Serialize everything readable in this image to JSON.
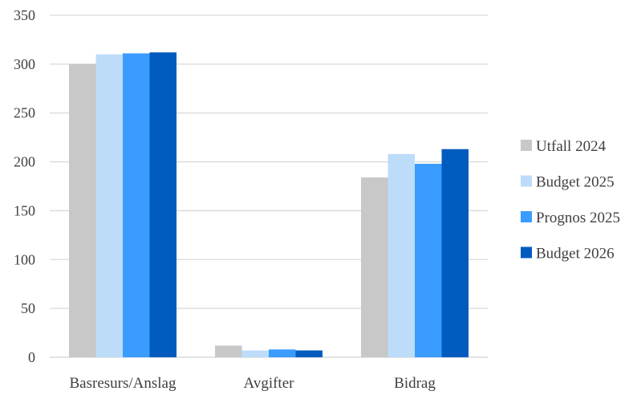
{
  "chart_data": {
    "type": "bar",
    "title": "",
    "xlabel": "",
    "ylabel": "",
    "ylim": [
      0,
      350
    ],
    "yticks": [
      0,
      50,
      100,
      150,
      200,
      250,
      300,
      350
    ],
    "grid": true,
    "legend_position": "right",
    "categories": [
      "Basresurs/Anslag",
      "Avgifter",
      "Bidrag"
    ],
    "series": [
      {
        "name": "Utfall 2024",
        "color": "#c8c8c8",
        "values": [
          300,
          12,
          184
        ]
      },
      {
        "name": "Budget 2025",
        "color": "#bddcfa",
        "values": [
          310,
          7,
          208
        ]
      },
      {
        "name": "Prognos 2025",
        "color": "#3b9cff",
        "values": [
          311,
          8,
          198
        ]
      },
      {
        "name": "Budget 2026",
        "color": "#005bbf",
        "values": [
          312,
          7,
          213
        ]
      }
    ]
  }
}
